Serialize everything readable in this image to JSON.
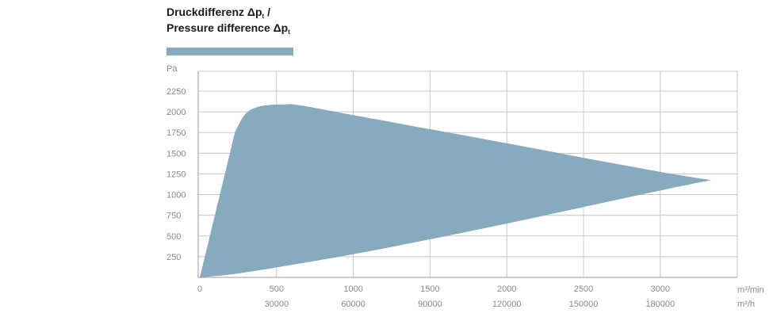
{
  "chart_data": {
    "type": "area",
    "title": {
      "line1_prefix": "Druckdifferenz Δp",
      "line1_sub": "t",
      "line1_suffix": " /",
      "line2_prefix": "Pressure difference Δp",
      "line2_sub": "t"
    },
    "ylabel": "Pa",
    "xlabel_primary": "m³/min",
    "xlabel_secondary": "m³/h",
    "xlim": [
      0,
      3500
    ],
    "ylim": [
      0,
      2500
    ],
    "y_ticks": [
      250,
      500,
      750,
      1000,
      1250,
      1500,
      1750,
      2000,
      2250
    ],
    "x_ticks_primary": [
      0,
      500,
      1000,
      1500,
      2000,
      2500,
      3000
    ],
    "x_ticks_secondary": [
      {
        "value": 500,
        "label": "30000"
      },
      {
        "value": 1000,
        "label": "60000"
      },
      {
        "value": 1500,
        "label": "90000"
      },
      {
        "value": 2000,
        "label": "120000"
      },
      {
        "value": 2500,
        "label": "150000"
      },
      {
        "value": 3000,
        "label": "180000"
      }
    ],
    "grid": true,
    "colors": {
      "fill": "#87aabf",
      "grid": "#c8c8c8",
      "tick_text": "#8a8a8a",
      "title": "#1a1a1a"
    },
    "series": [
      {
        "upper_boundary": [
          {
            "x": 0,
            "y": 0
          },
          {
            "x": 230,
            "y": 1760
          },
          {
            "x": 300,
            "y": 1980
          },
          {
            "x": 400,
            "y": 2070
          },
          {
            "x": 550,
            "y": 2090
          },
          {
            "x": 650,
            "y": 2080
          },
          {
            "x": 1000,
            "y": 1960
          },
          {
            "x": 1500,
            "y": 1790
          },
          {
            "x": 2000,
            "y": 1620
          },
          {
            "x": 2500,
            "y": 1445
          },
          {
            "x": 3000,
            "y": 1275
          },
          {
            "x": 3330,
            "y": 1175
          }
        ],
        "lower_boundary": [
          {
            "x": 0,
            "y": 0
          },
          {
            "x": 200,
            "y": 35
          },
          {
            "x": 500,
            "y": 120
          },
          {
            "x": 1000,
            "y": 280
          },
          {
            "x": 1500,
            "y": 460
          },
          {
            "x": 2000,
            "y": 650
          },
          {
            "x": 2500,
            "y": 850
          },
          {
            "x": 3000,
            "y": 1050
          },
          {
            "x": 3330,
            "y": 1175
          }
        ]
      }
    ]
  }
}
